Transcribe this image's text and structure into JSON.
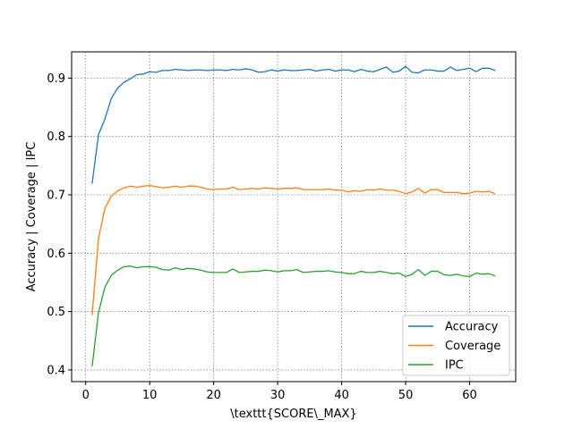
{
  "chart_data": {
    "type": "line",
    "title": "",
    "xlabel": "\\texttt{SCORE\\_MAX}",
    "ylabel": "Accuracy | Coverage | IPC",
    "xlim": [
      -2.2,
      67.2
    ],
    "ylim": [
      0.38,
      0.945
    ],
    "xticks": [
      0,
      10,
      20,
      30,
      40,
      50,
      60
    ],
    "xtick_labels": [
      "0",
      "10",
      "20",
      "30",
      "40",
      "50",
      "60"
    ],
    "yticks": [
      0.4,
      0.5,
      0.6,
      0.7,
      0.8,
      0.9
    ],
    "ytick_labels": [
      "0.4",
      "0.5",
      "0.6",
      "0.7",
      "0.8",
      "0.9"
    ],
    "grid": true,
    "legend_position": "lower-right",
    "x": [
      1,
      2,
      3,
      4,
      5,
      6,
      7,
      8,
      9,
      10,
      11,
      12,
      13,
      14,
      15,
      16,
      17,
      18,
      19,
      20,
      21,
      22,
      23,
      24,
      25,
      26,
      27,
      28,
      29,
      30,
      31,
      32,
      33,
      34,
      35,
      36,
      37,
      38,
      39,
      40,
      41,
      42,
      43,
      44,
      45,
      46,
      47,
      48,
      49,
      50,
      51,
      52,
      53,
      54,
      55,
      56,
      57,
      58,
      59,
      60,
      61,
      62,
      63,
      64
    ],
    "series": [
      {
        "name": "Accuracy",
        "color": "#1f77b4",
        "values": [
          0.719,
          0.803,
          0.83,
          0.865,
          0.883,
          0.893,
          0.899,
          0.906,
          0.907,
          0.911,
          0.91,
          0.913,
          0.913,
          0.915,
          0.914,
          0.913,
          0.914,
          0.914,
          0.913,
          0.914,
          0.914,
          0.913,
          0.915,
          0.914,
          0.916,
          0.914,
          0.91,
          0.911,
          0.914,
          0.912,
          0.914,
          0.913,
          0.913,
          0.914,
          0.915,
          0.912,
          0.914,
          0.915,
          0.912,
          0.914,
          0.914,
          0.911,
          0.915,
          0.912,
          0.911,
          0.915,
          0.919,
          0.91,
          0.912,
          0.92,
          0.91,
          0.909,
          0.914,
          0.914,
          0.912,
          0.912,
          0.919,
          0.913,
          0.915,
          0.917,
          0.911,
          0.917,
          0.917,
          0.913
        ]
      },
      {
        "name": "Coverage",
        "color": "#ff7f0e",
        "values": [
          0.494,
          0.625,
          0.677,
          0.698,
          0.707,
          0.712,
          0.715,
          0.713,
          0.715,
          0.716,
          0.714,
          0.712,
          0.713,
          0.715,
          0.713,
          0.715,
          0.715,
          0.713,
          0.71,
          0.709,
          0.71,
          0.71,
          0.713,
          0.709,
          0.71,
          0.711,
          0.71,
          0.712,
          0.711,
          0.71,
          0.711,
          0.711,
          0.712,
          0.709,
          0.709,
          0.709,
          0.709,
          0.71,
          0.708,
          0.708,
          0.705,
          0.707,
          0.706,
          0.709,
          0.708,
          0.71,
          0.708,
          0.708,
          0.706,
          0.702,
          0.705,
          0.711,
          0.703,
          0.709,
          0.709,
          0.704,
          0.704,
          0.704,
          0.702,
          0.703,
          0.706,
          0.705,
          0.706,
          0.702
        ]
      },
      {
        "name": "IPC",
        "color": "#2ca02c",
        "values": [
          0.406,
          0.498,
          0.542,
          0.562,
          0.571,
          0.577,
          0.578,
          0.575,
          0.577,
          0.577,
          0.576,
          0.572,
          0.571,
          0.575,
          0.572,
          0.574,
          0.573,
          0.571,
          0.568,
          0.567,
          0.567,
          0.567,
          0.573,
          0.567,
          0.568,
          0.569,
          0.569,
          0.571,
          0.57,
          0.568,
          0.57,
          0.57,
          0.572,
          0.567,
          0.568,
          0.569,
          0.569,
          0.57,
          0.568,
          0.567,
          0.565,
          0.565,
          0.569,
          0.567,
          0.567,
          0.569,
          0.567,
          0.565,
          0.566,
          0.56,
          0.564,
          0.572,
          0.562,
          0.569,
          0.569,
          0.563,
          0.562,
          0.564,
          0.561,
          0.56,
          0.566,
          0.564,
          0.565,
          0.561
        ]
      }
    ]
  }
}
